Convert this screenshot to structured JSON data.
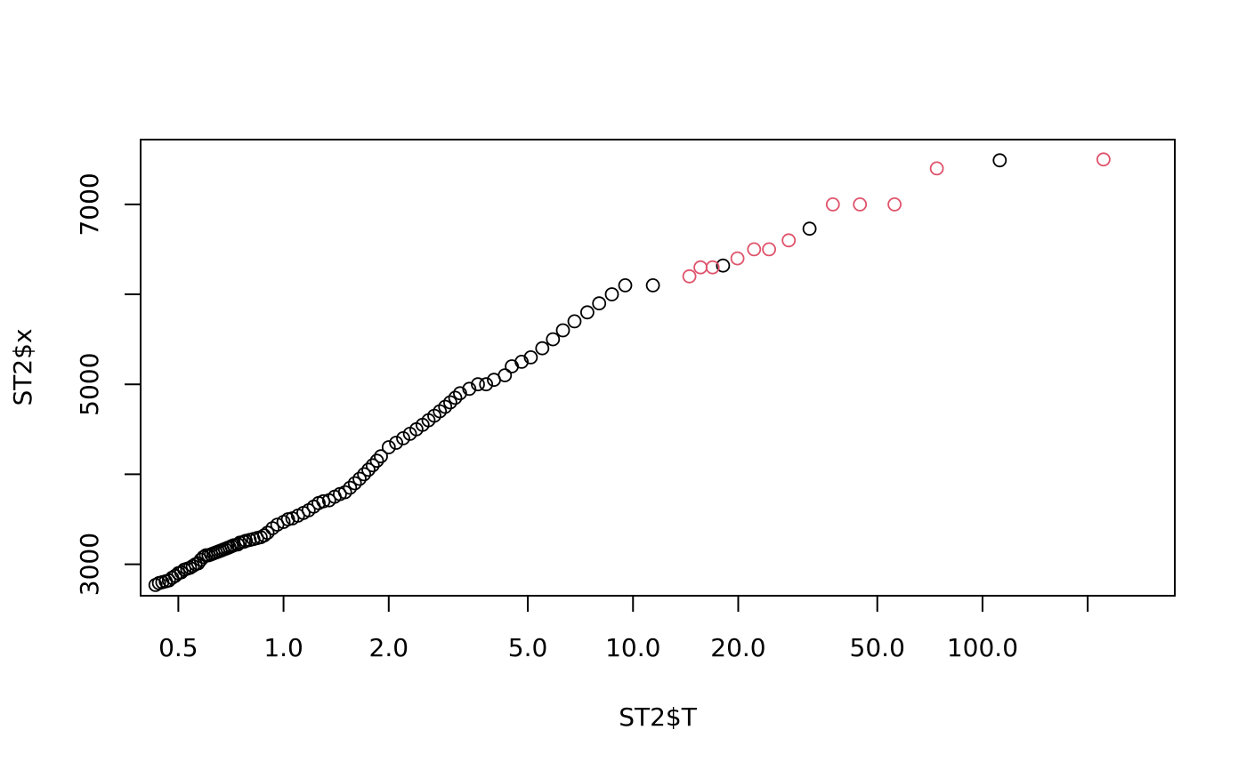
{
  "chart_data": {
    "type": "scatter",
    "title": "",
    "xlabel": "ST2$T",
    "ylabel": "ST2$x",
    "x_scale": "log",
    "xlim": [
      0.39,
      355
    ],
    "ylim": [
      2650,
      7720
    ],
    "x_ticks": [
      0.5,
      1,
      2,
      5,
      10,
      20,
      50,
      100,
      200
    ],
    "x_tick_labels": [
      "0.5",
      "1.0",
      "2.0",
      "5.0",
      "10.0",
      "20.0",
      "50.0",
      "100.0",
      ""
    ],
    "y_ticks": [
      3000,
      4000,
      5000,
      6000,
      7000
    ],
    "y_tick_labels": [
      "3000",
      "",
      "5000",
      "",
      "7000"
    ],
    "grid": false,
    "colors": {
      "black": "#000000",
      "red": "#DF536B"
    },
    "series": [
      {
        "color": "#000000",
        "points": [
          [
            0.43,
            2770
          ],
          [
            0.44,
            2790
          ],
          [
            0.45,
            2800
          ],
          [
            0.46,
            2810
          ],
          [
            0.47,
            2820
          ],
          [
            0.48,
            2850
          ],
          [
            0.49,
            2870
          ],
          [
            0.5,
            2900
          ],
          [
            0.51,
            2910
          ],
          [
            0.52,
            2940
          ],
          [
            0.53,
            2950
          ],
          [
            0.54,
            2960
          ],
          [
            0.55,
            2980
          ],
          [
            0.56,
            3000
          ],
          [
            0.57,
            3010
          ],
          [
            0.58,
            3050
          ],
          [
            0.59,
            3080
          ],
          [
            0.6,
            3100
          ],
          [
            0.61,
            3100
          ],
          [
            0.62,
            3110
          ],
          [
            0.63,
            3120
          ],
          [
            0.64,
            3130
          ],
          [
            0.65,
            3140
          ],
          [
            0.66,
            3150
          ],
          [
            0.67,
            3160
          ],
          [
            0.68,
            3170
          ],
          [
            0.69,
            3180
          ],
          [
            0.7,
            3190
          ],
          [
            0.71,
            3200
          ],
          [
            0.72,
            3210
          ],
          [
            0.74,
            3220
          ],
          [
            0.75,
            3240
          ],
          [
            0.77,
            3250
          ],
          [
            0.78,
            3260
          ],
          [
            0.8,
            3270
          ],
          [
            0.82,
            3280
          ],
          [
            0.84,
            3290
          ],
          [
            0.86,
            3300
          ],
          [
            0.88,
            3320
          ],
          [
            0.9,
            3350
          ],
          [
            0.93,
            3400
          ],
          [
            0.96,
            3440
          ],
          [
            1.0,
            3470
          ],
          [
            1.03,
            3500
          ],
          [
            1.06,
            3510
          ],
          [
            1.1,
            3540
          ],
          [
            1.14,
            3570
          ],
          [
            1.18,
            3600
          ],
          [
            1.22,
            3640
          ],
          [
            1.26,
            3680
          ],
          [
            1.3,
            3700
          ],
          [
            1.35,
            3710
          ],
          [
            1.4,
            3750
          ],
          [
            1.45,
            3780
          ],
          [
            1.5,
            3800
          ],
          [
            1.55,
            3850
          ],
          [
            1.6,
            3900
          ],
          [
            1.65,
            3950
          ],
          [
            1.7,
            4000
          ],
          [
            1.75,
            4050
          ],
          [
            1.8,
            4100
          ],
          [
            1.85,
            4150
          ],
          [
            1.9,
            4200
          ],
          [
            2.0,
            4300
          ],
          [
            2.1,
            4350
          ],
          [
            2.2,
            4400
          ],
          [
            2.3,
            4450
          ],
          [
            2.4,
            4500
          ],
          [
            2.5,
            4550
          ],
          [
            2.6,
            4600
          ],
          [
            2.7,
            4650
          ],
          [
            2.8,
            4700
          ],
          [
            2.9,
            4750
          ],
          [
            3.0,
            4800
          ],
          [
            3.1,
            4850
          ],
          [
            3.2,
            4900
          ],
          [
            3.4,
            4950
          ],
          [
            3.6,
            5000
          ],
          [
            3.8,
            5000
          ],
          [
            4.0,
            5050
          ],
          [
            4.3,
            5100
          ],
          [
            4.5,
            5200
          ],
          [
            4.8,
            5250
          ],
          [
            5.1,
            5300
          ],
          [
            5.5,
            5400
          ],
          [
            5.9,
            5500
          ],
          [
            6.3,
            5600
          ],
          [
            6.8,
            5700
          ],
          [
            7.4,
            5800
          ],
          [
            8.0,
            5900
          ],
          [
            8.7,
            6000
          ],
          [
            9.5,
            6100
          ],
          [
            11.4,
            6100
          ],
          [
            18.1,
            6320
          ],
          [
            32,
            6730
          ],
          [
            112,
            7490
          ]
        ]
      },
      {
        "color": "#DF536B",
        "points": [
          [
            14.5,
            6200
          ],
          [
            15.6,
            6300
          ],
          [
            16.9,
            6300
          ],
          [
            19.9,
            6400
          ],
          [
            22.2,
            6500
          ],
          [
            24.5,
            6500
          ],
          [
            27.9,
            6600
          ],
          [
            37.3,
            7000
          ],
          [
            44.6,
            7000
          ],
          [
            56,
            7000
          ],
          [
            74,
            7400
          ],
          [
            222,
            7500
          ]
        ]
      }
    ]
  }
}
